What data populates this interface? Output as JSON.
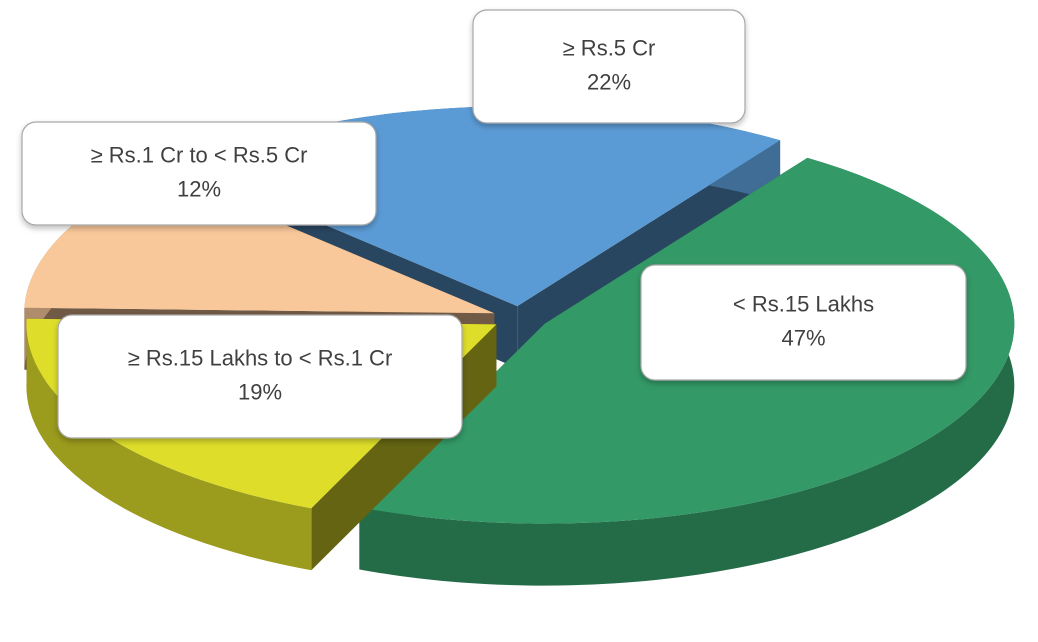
{
  "chart_data": {
    "type": "pie",
    "categories": [
      "< Rs.15 Lakhs",
      "≥ Rs.15 Lakhs to < Rs.1 Cr",
      "≥ Rs.1 Cr to < Rs.5 Cr",
      "≥ Rs.5 Cr"
    ],
    "values": [
      47,
      19,
      12,
      22
    ],
    "value_labels": [
      "47%",
      "19%",
      "12%",
      "22%"
    ],
    "colors": [
      "#339966",
      "#dede2a",
      "#f9c89a",
      "#5b9bd5"
    ]
  }
}
